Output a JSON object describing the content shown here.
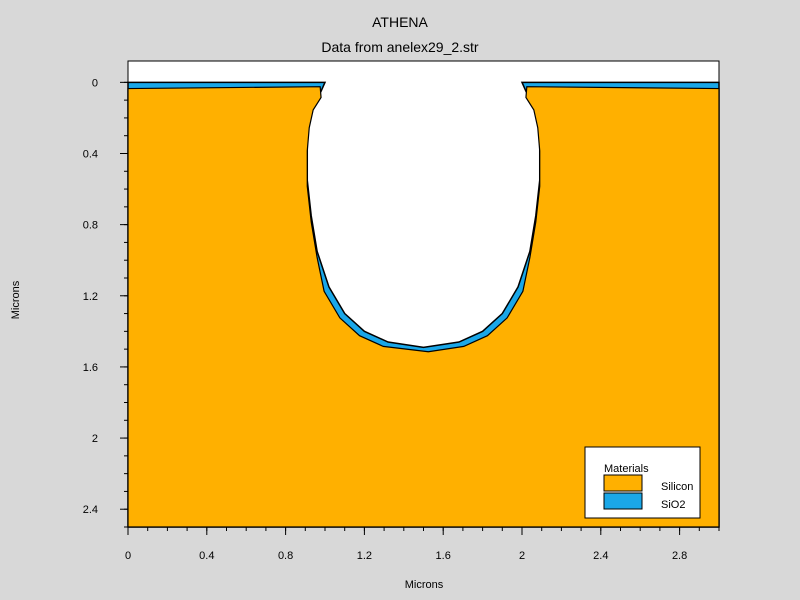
{
  "chart_data": {
    "type": "area",
    "title": "ATHENA",
    "subtitle": "Data from anelex29_2.str",
    "xlabel": "Microns",
    "ylabel": "Microns",
    "xlim": [
      0,
      3.0
    ],
    "ylim": [
      -0.12,
      2.5
    ],
    "y_inverted": true,
    "grid": false,
    "x_ticks": [
      0,
      0.4,
      0.8,
      1.2,
      1.6,
      2,
      2.4,
      2.8
    ],
    "x_tick_labels": [
      "0",
      "0.4",
      "0.8",
      "1.2",
      "1.6",
      "2",
      "2.4",
      "2.8"
    ],
    "y_ticks": [
      0,
      0.4,
      0.8,
      1.2,
      1.6,
      2,
      2.4
    ],
    "y_tick_labels": [
      "0",
      "0.4",
      "0.8",
      "1.2",
      "1.6",
      "2",
      "2.4"
    ],
    "legend": {
      "title": "Materials",
      "position": "bottom-right",
      "entries": [
        {
          "label": "Silicon",
          "color": "#ffb000"
        },
        {
          "label": "SiO2",
          "color": "#1aa7e8"
        }
      ]
    },
    "regions": [
      {
        "material": "Silicon",
        "color": "#ffb000",
        "description": "substrate below y=0 with etched trench",
        "trench_outline": [
          [
            0.0,
            0.0
          ],
          [
            1.0,
            0.0
          ],
          [
            0.98,
            0.05
          ],
          [
            0.94,
            0.12
          ],
          [
            0.92,
            0.22
          ],
          [
            0.91,
            0.35
          ],
          [
            0.91,
            0.55
          ],
          [
            0.93,
            0.75
          ],
          [
            0.96,
            0.95
          ],
          [
            1.02,
            1.15
          ],
          [
            1.1,
            1.3
          ],
          [
            1.2,
            1.4
          ],
          [
            1.32,
            1.46
          ],
          [
            1.5,
            1.49
          ],
          [
            1.68,
            1.46
          ],
          [
            1.8,
            1.4
          ],
          [
            1.9,
            1.3
          ],
          [
            1.98,
            1.15
          ],
          [
            2.04,
            0.95
          ],
          [
            2.07,
            0.75
          ],
          [
            2.09,
            0.55
          ],
          [
            2.09,
            0.35
          ],
          [
            2.08,
            0.22
          ],
          [
            2.06,
            0.12
          ],
          [
            2.02,
            0.05
          ],
          [
            2.0,
            0.0
          ],
          [
            3.0,
            0.0
          ]
        ]
      },
      {
        "material": "SiO2",
        "color": "#1aa7e8",
        "thickness": 0.035,
        "description": "oxide liner on surface and trench walls"
      }
    ]
  }
}
